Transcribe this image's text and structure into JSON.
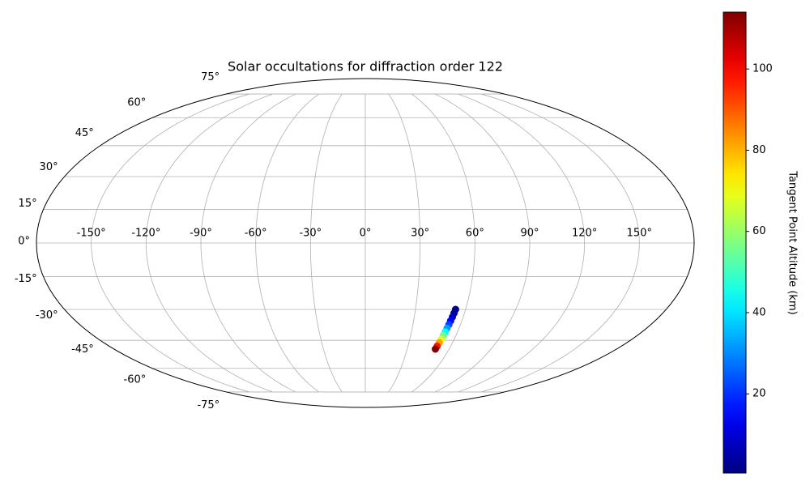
{
  "chart_data": {
    "type": "scatter",
    "projection": "mollweide",
    "title": "Solar occultations for diffraction order 122",
    "x": [
      54,
      53.7,
      53.4,
      53,
      52.7,
      52.3,
      52,
      51.6,
      51.3,
      50.9,
      50.5,
      50.2
    ],
    "values": [
      -30,
      -31.8,
      -33.6,
      -35.4,
      -37.2,
      -39,
      -40.8,
      -42.6,
      -44.4,
      -46.2,
      -48,
      -49.5
    ],
    "color_values": [
      1,
      4,
      8,
      14,
      22,
      32,
      43,
      55,
      68,
      82,
      98,
      114
    ],
    "colormap": "jet",
    "clim": [
      0.5,
      114
    ],
    "colorbar_label": "Tangent Point Altitude (km)",
    "colorbar_ticks": [
      20,
      40,
      60,
      80,
      100
    ],
    "xlim": [
      -180,
      180
    ],
    "ylim": [
      -90,
      90
    ],
    "xticks": [
      {
        "value": -150,
        "label": "-150°"
      },
      {
        "value": -120,
        "label": "-120°"
      },
      {
        "value": -90,
        "label": "-90°"
      },
      {
        "value": -60,
        "label": "-60°"
      },
      {
        "value": -30,
        "label": "-30°"
      },
      {
        "value": 0,
        "label": "0°"
      },
      {
        "value": 30,
        "label": "30°"
      },
      {
        "value": 60,
        "label": "60°"
      },
      {
        "value": 90,
        "label": "90°"
      },
      {
        "value": 120,
        "label": "120°"
      },
      {
        "value": 150,
        "label": "150°"
      }
    ],
    "yticks": [
      {
        "value": -75,
        "label": "-75°"
      },
      {
        "value": -60,
        "label": "-60°"
      },
      {
        "value": -45,
        "label": "-45°"
      },
      {
        "value": -30,
        "label": "-30°"
      },
      {
        "value": -15,
        "label": "-15°"
      },
      {
        "value": 0,
        "label": "0°"
      },
      {
        "value": 15,
        "label": "15°"
      },
      {
        "value": 30,
        "label": "30°"
      },
      {
        "value": 45,
        "label": "45°"
      },
      {
        "value": 60,
        "label": "60°"
      },
      {
        "value": 75,
        "label": "75°"
      }
    ],
    "grid": true
  }
}
